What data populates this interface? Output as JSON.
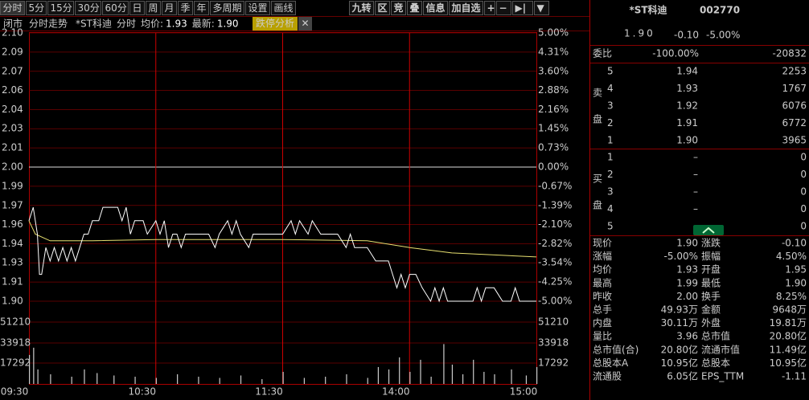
{
  "toolbar": {
    "left": [
      "分时",
      "5分",
      "15分",
      "30分",
      "60分",
      "日",
      "周",
      "月",
      "季",
      "年",
      "多周期",
      "设置",
      "画线"
    ],
    "right": [
      "九转",
      "区",
      "竞",
      "叠",
      "信息",
      "加自选",
      "+",
      "−",
      "▶|",
      "▼"
    ]
  },
  "info_bar": {
    "status": "闭市",
    "mode": "分时走势",
    "stock": "*ST科迪",
    "period": "分时",
    "avg_label": "均价:",
    "avg": "1.93",
    "last_label": "最新:",
    "last": "1.90",
    "tag": "跌停分析",
    "close": "✕"
  },
  "chart": {
    "type": "line",
    "xlim": [
      0,
      240
    ],
    "ylim": [
      1.9,
      2.1
    ],
    "vol_ylim": [
      0,
      68500
    ],
    "price_ticks": [
      {
        "value": 2.1,
        "label": "2.10"
      },
      {
        "value": 2.0857,
        "label": "2.09"
      },
      {
        "value": 2.0714,
        "label": "2.07"
      },
      {
        "value": 2.0571,
        "label": "2.06"
      },
      {
        "value": 2.0429,
        "label": "2.04"
      },
      {
        "value": 2.0286,
        "label": "2.03"
      },
      {
        "value": 2.0143,
        "label": "2.01"
      },
      {
        "value": 2,
        "label": "2.00"
      },
      {
        "value": 1.9857,
        "label": "1.99"
      },
      {
        "value": 1.9714,
        "label": "1.97"
      },
      {
        "value": 1.9571,
        "label": "1.96"
      },
      {
        "value": 1.9429,
        "label": "1.94"
      },
      {
        "value": 1.9286,
        "label": "1.93"
      },
      {
        "value": 1.9143,
        "label": "1.91"
      },
      {
        "value": 1.9,
        "label": "1.90"
      }
    ],
    "pct_labels": [
      "5.00%",
      "4.31%",
      "3.60%",
      "2.88%",
      "2.16%",
      "1.45%",
      "0.73%",
      "0.00%",
      "-0.67%",
      "-1.39%",
      "-2.10%",
      "-2.82%",
      "-3.54%",
      "-4.25%",
      "-5.00%"
    ],
    "vol_ticks": [
      17292,
      33918,
      51210
    ],
    "time_ticks": [
      {
        "value": 0,
        "label": "09:30"
      },
      {
        "value": 60,
        "label": "10:30"
      },
      {
        "value": 120,
        "label": "11:30"
      },
      {
        "value": 180,
        "label": "14:00"
      },
      {
        "value": 240,
        "label": "15:00"
      }
    ],
    "price": {
      "x": [
        0,
        2,
        4,
        5,
        6,
        7,
        8,
        10,
        12,
        14,
        16,
        18,
        20,
        22,
        24,
        26,
        28,
        30,
        33,
        35,
        42,
        44,
        46,
        48,
        50,
        54,
        56,
        60,
        62,
        64,
        66,
        68,
        70,
        72,
        74,
        85,
        88,
        90,
        94,
        96,
        98,
        100,
        104,
        106,
        120,
        124,
        126,
        128,
        132,
        134,
        138,
        146,
        150,
        152,
        154,
        160,
        164,
        170,
        172,
        174,
        176,
        178,
        180,
        183,
        186,
        190,
        192,
        194,
        196,
        198,
        210,
        212,
        214,
        216,
        220,
        224,
        228,
        230,
        232,
        240
      ],
      "values": [
        1.96,
        1.97,
        1.95,
        1.92,
        1.92,
        1.93,
        1.94,
        1.93,
        1.94,
        1.93,
        1.94,
        1.93,
        1.94,
        1.93,
        1.94,
        1.95,
        1.95,
        1.96,
        1.96,
        1.97,
        1.97,
        1.96,
        1.97,
        1.95,
        1.96,
        1.96,
        1.95,
        1.96,
        1.95,
        1.96,
        1.94,
        1.95,
        1.95,
        1.94,
        1.95,
        1.95,
        1.94,
        1.95,
        1.96,
        1.95,
        1.96,
        1.95,
        1.94,
        1.95,
        1.95,
        1.96,
        1.95,
        1.96,
        1.95,
        1.96,
        1.95,
        1.95,
        1.94,
        1.95,
        1.94,
        1.94,
        1.93,
        1.93,
        1.92,
        1.91,
        1.92,
        1.91,
        1.92,
        1.92,
        1.91,
        1.9,
        1.91,
        1.9,
        1.91,
        1.9,
        1.9,
        1.91,
        1.9,
        1.91,
        1.91,
        1.9,
        1.9,
        1.91,
        1.9,
        1.9
      ]
    },
    "avg": {
      "x": [
        0,
        3,
        10,
        30,
        60,
        120,
        160,
        180,
        200,
        240
      ],
      "values": [
        1.96,
        1.95,
        1.945,
        1.945,
        1.946,
        1.946,
        1.945,
        1.94,
        1.936,
        1.933
      ]
    },
    "volume": {
      "x": [
        0,
        2,
        4,
        10,
        20,
        26,
        32,
        40,
        50,
        60,
        70,
        80,
        90,
        100,
        110,
        120,
        130,
        140,
        150,
        160,
        165,
        170,
        175,
        180,
        185,
        190,
        196,
        200,
        205,
        210,
        215,
        220,
        228,
        235,
        240
      ],
      "values": [
        24000,
        30000,
        12000,
        8000,
        6000,
        12000,
        9000,
        7000,
        6000,
        5000,
        8000,
        6000,
        5000,
        7000,
        4000,
        10000,
        5000,
        6000,
        8000,
        5000,
        14000,
        12000,
        22000,
        10000,
        20000,
        6000,
        33000,
        16000,
        8000,
        20000,
        10000,
        8000,
        12000,
        7000,
        14000
      ]
    }
  },
  "quote": {
    "name": "*ST科迪",
    "code": "002770",
    "price": "1.90",
    "change": "-0.10",
    "pct": "-5.00%"
  },
  "ratio": {
    "label": "委比",
    "pct": "-100.00%",
    "diff": "-20832"
  },
  "sell": {
    "label": [
      "卖",
      "盘"
    ],
    "rows": [
      [
        "5",
        "1.94",
        "2253"
      ],
      [
        "4",
        "1.93",
        "1767"
      ],
      [
        "3",
        "1.92",
        "6076"
      ],
      [
        "2",
        "1.91",
        "6772"
      ],
      [
        "1",
        "1.90",
        "3965"
      ]
    ]
  },
  "buy": {
    "label": [
      "买",
      "盘"
    ],
    "rows": [
      [
        "1",
        "–",
        "0"
      ],
      [
        "2",
        "–",
        "0"
      ],
      [
        "3",
        "–",
        "0"
      ],
      [
        "4",
        "–",
        "0"
      ],
      [
        "5",
        "–",
        "0"
      ]
    ]
  },
  "stats": [
    [
      "现价",
      "1.90",
      "涨跌",
      "-0.10"
    ],
    [
      "涨幅",
      "-5.00%",
      "振幅",
      "4.50%"
    ],
    [
      "均价",
      "1.93",
      "开盘",
      "1.95"
    ],
    [
      "最高",
      "1.99",
      "最低",
      "1.90"
    ],
    [
      "昨收",
      "2.00",
      "换手",
      "8.25%"
    ],
    [
      "总手",
      "49.93万",
      "金额",
      "9648万"
    ],
    [
      "内盘",
      "30.11万",
      "外盘",
      "19.81万"
    ],
    [
      "量比",
      "3.96",
      "总市值",
      "20.80亿"
    ],
    [
      "总市值(合)",
      "20.80亿",
      "流通市值",
      "11.49亿"
    ],
    [
      "总股本A",
      "10.95亿",
      "总股本",
      "10.95亿"
    ],
    [
      "流通股",
      "6.05亿",
      "EPS_TTM",
      "-1.11"
    ]
  ]
}
